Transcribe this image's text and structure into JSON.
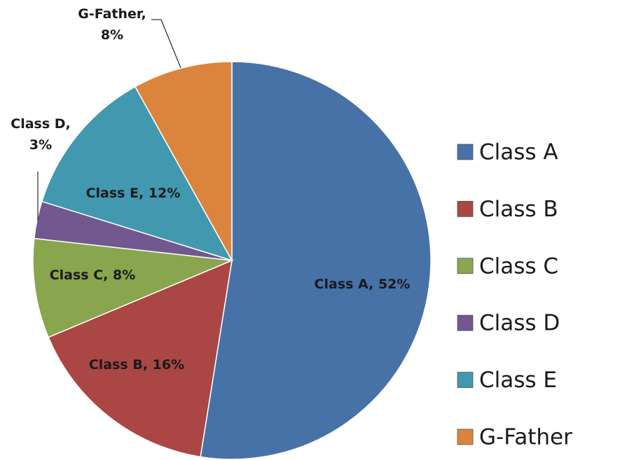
{
  "chart_data": {
    "type": "pie",
    "categories": [
      "Class A",
      "Class B",
      "Class C",
      "Class D",
      "Class E",
      "G-Father"
    ],
    "values": [
      52,
      16,
      8,
      3,
      12,
      8
    ],
    "value_labels": [
      "Class A, 52%",
      "Class B, 16%",
      "Class C, 8%",
      "Class D,\n3%",
      "Class E, 12%",
      "G-Father,\n8%"
    ],
    "colors": [
      "#4672a8",
      "#aa4643",
      "#89a54e",
      "#71588f",
      "#4198af",
      "#db843d"
    ],
    "legend": "right"
  }
}
